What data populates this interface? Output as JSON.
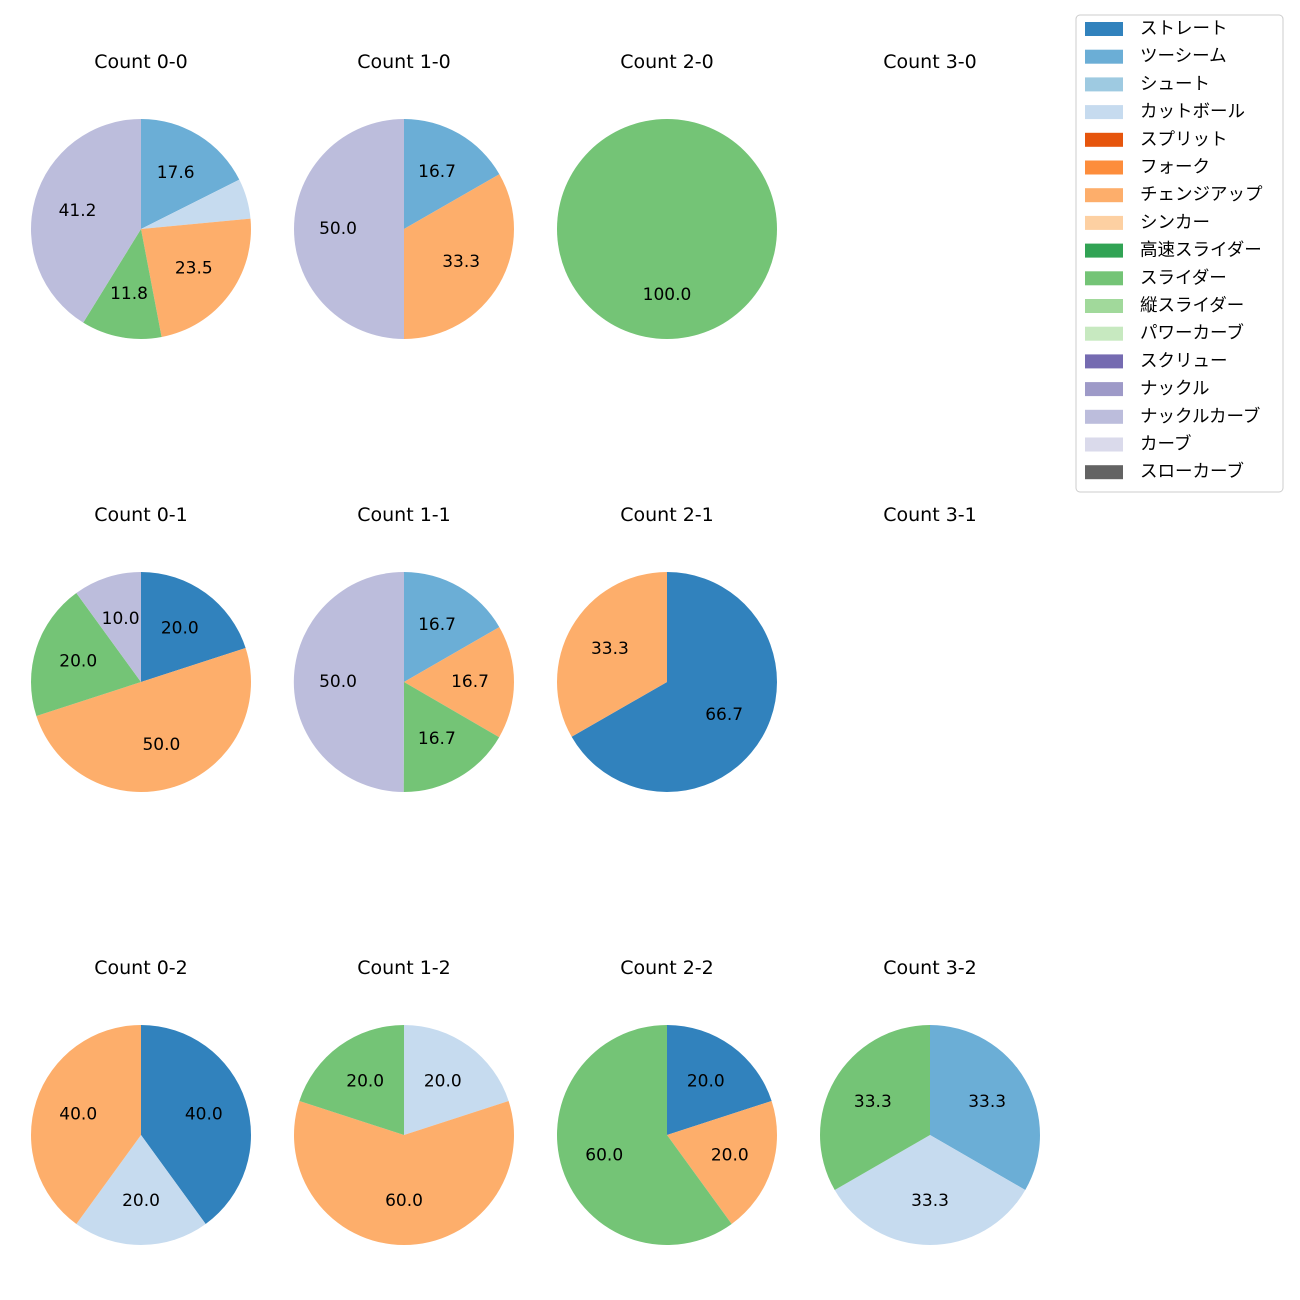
{
  "legend": {
    "items": [
      {
        "label": "ストレート",
        "color": "#3182bd"
      },
      {
        "label": "ツーシーム",
        "color": "#6baed6"
      },
      {
        "label": "シュート",
        "color": "#9ecae1"
      },
      {
        "label": "カットボール",
        "color": "#c6dbef"
      },
      {
        "label": "スプリット",
        "color": "#e6550d"
      },
      {
        "label": "フォーク",
        "color": "#fd8d3c"
      },
      {
        "label": "チェンジアップ",
        "color": "#fdae6b"
      },
      {
        "label": "シンカー",
        "color": "#fdd0a2"
      },
      {
        "label": "高速スライダー",
        "color": "#31a354"
      },
      {
        "label": "スライダー",
        "color": "#74c476"
      },
      {
        "label": "縦スライダー",
        "color": "#a1d99b"
      },
      {
        "label": "パワーカーブ",
        "color": "#c7e9c0"
      },
      {
        "label": "スクリュー",
        "color": "#756bb1"
      },
      {
        "label": "ナックル",
        "color": "#9e9ac8"
      },
      {
        "label": "ナックルカーブ",
        "color": "#bcbddc"
      },
      {
        "label": "カーブ",
        "color": "#dadaeb"
      },
      {
        "label": "スローカーブ",
        "color": "#636363"
      }
    ]
  },
  "chart_data": [
    {
      "type": "pie",
      "title": "Count 0-0",
      "slices": [
        {
          "name": "ツーシーム",
          "value": 17.6,
          "label": "17.6"
        },
        {
          "name": "カットボール",
          "value": 5.9,
          "label": ""
        },
        {
          "name": "チェンジアップ",
          "value": 23.5,
          "label": "23.5"
        },
        {
          "name": "スライダー",
          "value": 11.8,
          "label": "11.8"
        },
        {
          "name": "ナックルカーブ",
          "value": 41.2,
          "label": "41.2"
        }
      ]
    },
    {
      "type": "pie",
      "title": "Count 1-0",
      "slices": [
        {
          "name": "ツーシーム",
          "value": 16.7,
          "label": "16.7"
        },
        {
          "name": "チェンジアップ",
          "value": 33.3,
          "label": "33.3"
        },
        {
          "name": "ナックルカーブ",
          "value": 50.0,
          "label": "50.0"
        }
      ]
    },
    {
      "type": "pie",
      "title": "Count 2-0",
      "slices": [
        {
          "name": "スライダー",
          "value": 100.0,
          "label": "100.0"
        }
      ]
    },
    {
      "type": "pie",
      "title": "Count 3-0",
      "slices": []
    },
    {
      "type": "pie",
      "title": "Count 0-1",
      "slices": [
        {
          "name": "ストレート",
          "value": 20.0,
          "label": "20.0"
        },
        {
          "name": "チェンジアップ",
          "value": 50.0,
          "label": "50.0"
        },
        {
          "name": "スライダー",
          "value": 20.0,
          "label": "20.0"
        },
        {
          "name": "ナックルカーブ",
          "value": 10.0,
          "label": "10.0"
        }
      ]
    },
    {
      "type": "pie",
      "title": "Count 1-1",
      "slices": [
        {
          "name": "ツーシーム",
          "value": 16.7,
          "label": "16.7"
        },
        {
          "name": "チェンジアップ",
          "value": 16.7,
          "label": "16.7"
        },
        {
          "name": "スライダー",
          "value": 16.7,
          "label": "16.7"
        },
        {
          "name": "ナックルカーブ",
          "value": 50.0,
          "label": "50.0"
        }
      ]
    },
    {
      "type": "pie",
      "title": "Count 2-1",
      "slices": [
        {
          "name": "ストレート",
          "value": 66.7,
          "label": "66.7"
        },
        {
          "name": "チェンジアップ",
          "value": 33.3,
          "label": "33.3"
        }
      ]
    },
    {
      "type": "pie",
      "title": "Count 3-1",
      "slices": []
    },
    {
      "type": "pie",
      "title": "Count 0-2",
      "slices": [
        {
          "name": "ストレート",
          "value": 40.0,
          "label": "40.0"
        },
        {
          "name": "カットボール",
          "value": 20.0,
          "label": "20.0"
        },
        {
          "name": "チェンジアップ",
          "value": 40.0,
          "label": "40.0"
        }
      ]
    },
    {
      "type": "pie",
      "title": "Count 1-2",
      "slices": [
        {
          "name": "カットボール",
          "value": 20.0,
          "label": "20.0"
        },
        {
          "name": "チェンジアップ",
          "value": 60.0,
          "label": "60.0"
        },
        {
          "name": "スライダー",
          "value": 20.0,
          "label": "20.0"
        }
      ]
    },
    {
      "type": "pie",
      "title": "Count 2-2",
      "slices": [
        {
          "name": "ストレート",
          "value": 20.0,
          "label": "20.0"
        },
        {
          "name": "チェンジアップ",
          "value": 20.0,
          "label": "20.0"
        },
        {
          "name": "スライダー",
          "value": 60.0,
          "label": "60.0"
        }
      ]
    },
    {
      "type": "pie",
      "title": "Count 3-2",
      "slices": [
        {
          "name": "ツーシーム",
          "value": 33.3,
          "label": "33.3"
        },
        {
          "name": "カットボール",
          "value": 33.3,
          "label": "33.3"
        },
        {
          "name": "スライダー",
          "value": 33.3,
          "label": "33.3"
        }
      ]
    }
  ]
}
